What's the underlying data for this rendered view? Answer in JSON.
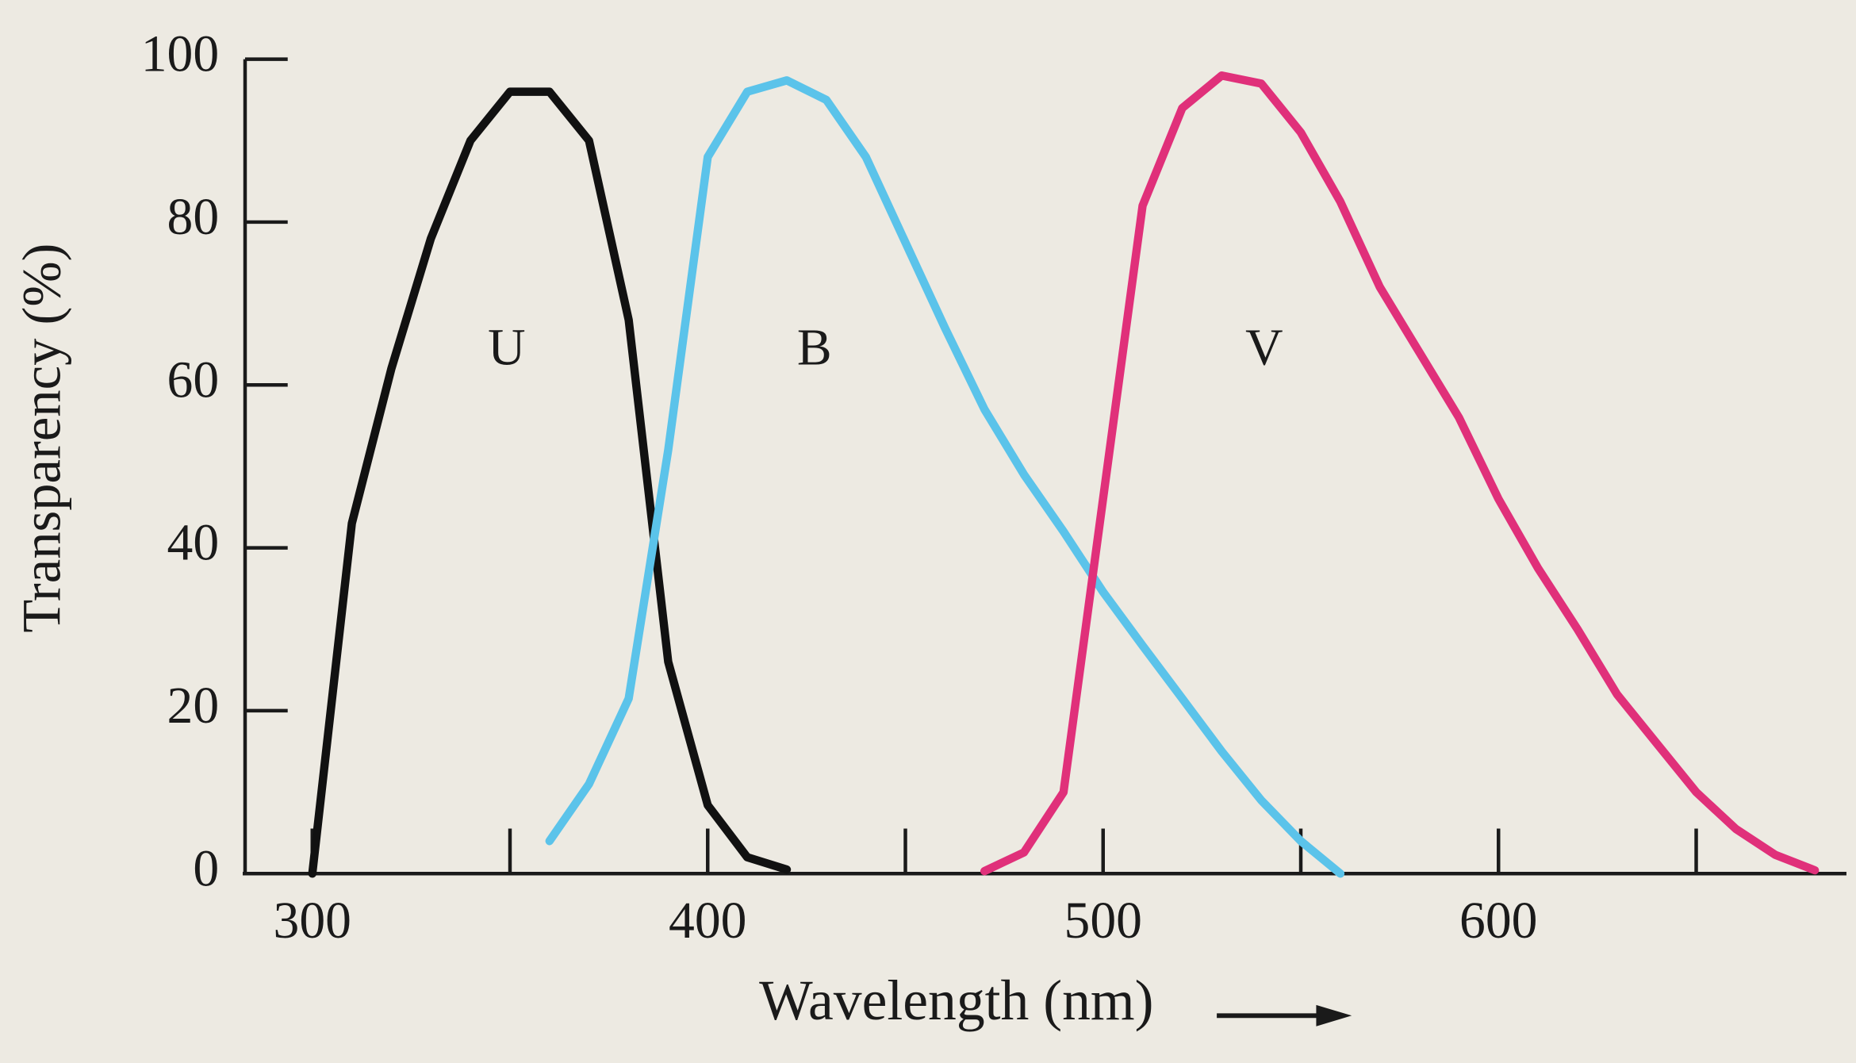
{
  "chart_data": {
    "type": "line",
    "x_label": "Wavelength (nm)",
    "y_label": "Transparency (%)",
    "x": [
      300,
      310,
      320,
      330,
      340,
      350,
      360,
      370,
      380,
      390,
      400,
      410,
      420,
      430,
      440,
      450,
      460,
      470,
      480,
      490,
      500,
      510,
      520,
      530,
      540,
      550,
      560,
      570,
      580,
      590,
      600,
      610,
      620,
      630,
      640,
      650,
      660,
      670,
      680
    ],
    "series": [
      {
        "name": "U",
        "color": "#111111",
        "values": [
          0,
          43,
          62,
          78,
          90,
          96,
          96,
          90,
          68,
          26,
          8.4,
          2,
          0.5,
          null,
          null,
          null,
          null,
          null,
          null,
          null,
          null,
          null,
          null,
          null,
          null,
          null,
          null,
          null,
          null,
          null,
          null,
          null,
          null,
          null,
          null,
          null,
          null,
          null,
          null
        ]
      },
      {
        "name": "B",
        "color": "#5bc3ea",
        "values": [
          null,
          null,
          null,
          null,
          null,
          null,
          4,
          11,
          21.5,
          52,
          88,
          96,
          97.4,
          95,
          88,
          77.5,
          67,
          57,
          49,
          42,
          34.6,
          28,
          21.5,
          15,
          9,
          4,
          0,
          null,
          null,
          null,
          null,
          null,
          null,
          null,
          null,
          null,
          null,
          null,
          null
        ]
      },
      {
        "name": "V",
        "color": "#e0307a",
        "values": [
          null,
          null,
          null,
          null,
          null,
          null,
          null,
          null,
          null,
          null,
          null,
          null,
          null,
          null,
          null,
          null,
          null,
          0.3,
          2.6,
          10,
          46,
          82,
          94,
          98,
          97,
          91,
          82.5,
          72,
          64,
          56,
          46,
          37.5,
          30,
          22,
          16,
          10,
          5.5,
          2.3,
          0.4
        ]
      }
    ],
    "xlim": [
      283,
      688
    ],
    "xticks": [
      300,
      400,
      500,
      600
    ],
    "xminorticks": [
      350,
      450,
      550,
      650
    ],
    "ylim": [
      0,
      100
    ],
    "yticks": [
      0,
      20,
      40,
      60,
      80,
      100
    ]
  }
}
